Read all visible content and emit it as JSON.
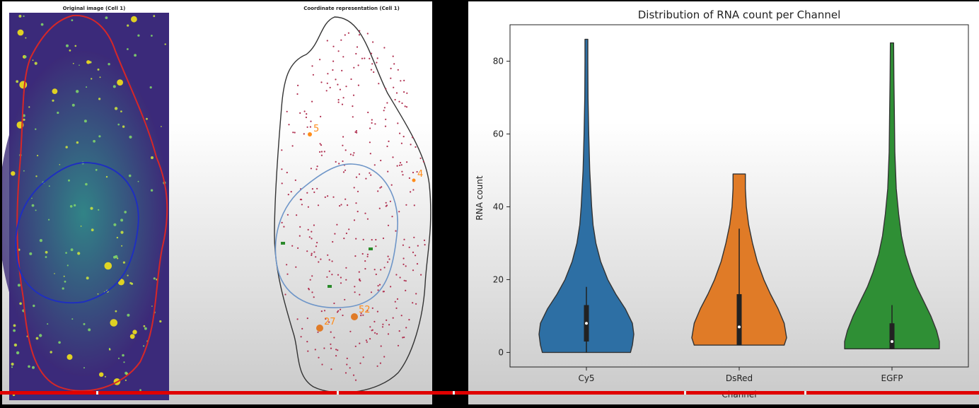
{
  "left": {
    "title_original": "Original image (Cell 1)",
    "title_coord": "Coordinate representation (Cell 1)",
    "cluster_labels": [
      "5",
      "4",
      "27",
      "52"
    ],
    "colors": {
      "cell_outline": "#d62728",
      "nucleus_outline": "#1f2fbf",
      "rna_spot": "#b03050",
      "cluster": "#ff8c1a",
      "coord_nucleus": "#6f96c8"
    }
  },
  "chart_data": {
    "type": "violin",
    "title": "Distribution of RNA count per Channel",
    "xlabel": "Channel",
    "ylabel": "RNA count",
    "categories": [
      "Cy5",
      "DsRed",
      "EGFP"
    ],
    "ylim": [
      -4,
      90
    ],
    "yticks": [
      0,
      20,
      40,
      60,
      80
    ],
    "colors": [
      "#2d6fa4",
      "#e07b27",
      "#2f8f35"
    ],
    "series": [
      {
        "category": "Cy5",
        "min": 0,
        "max": 86,
        "q1": 3,
        "median": 8,
        "q3": 13,
        "whisker_low": 0,
        "whisker_high": 18,
        "profile": [
          [
            0,
            0.93
          ],
          [
            2,
            0.97
          ],
          [
            5,
            1.0
          ],
          [
            8,
            0.97
          ],
          [
            12,
            0.82
          ],
          [
            16,
            0.62
          ],
          [
            20,
            0.45
          ],
          [
            25,
            0.3
          ],
          [
            30,
            0.2
          ],
          [
            35,
            0.14
          ],
          [
            40,
            0.11
          ],
          [
            50,
            0.07
          ],
          [
            60,
            0.05
          ],
          [
            70,
            0.035
          ],
          [
            80,
            0.03
          ],
          [
            86,
            0.03
          ]
        ]
      },
      {
        "category": "DsRed",
        "min": 2,
        "max": 49,
        "q1": 2,
        "median": 7,
        "q3": 16,
        "whisker_low": 2,
        "whisker_high": 34,
        "profile": [
          [
            2,
            0.95
          ],
          [
            4,
            1.0
          ],
          [
            8,
            0.95
          ],
          [
            12,
            0.82
          ],
          [
            16,
            0.66
          ],
          [
            20,
            0.52
          ],
          [
            25,
            0.38
          ],
          [
            30,
            0.28
          ],
          [
            35,
            0.2
          ],
          [
            40,
            0.15
          ],
          [
            45,
            0.13
          ],
          [
            49,
            0.13
          ]
        ]
      },
      {
        "category": "EGFP",
        "min": 1,
        "max": 85,
        "q1": 1,
        "median": 3,
        "q3": 8,
        "whisker_low": 1,
        "whisker_high": 13,
        "profile": [
          [
            1,
            1.0
          ],
          [
            3,
            1.0
          ],
          [
            6,
            0.94
          ],
          [
            10,
            0.82
          ],
          [
            14,
            0.67
          ],
          [
            18,
            0.52
          ],
          [
            22,
            0.4
          ],
          [
            27,
            0.28
          ],
          [
            32,
            0.2
          ],
          [
            38,
            0.14
          ],
          [
            45,
            0.09
          ],
          [
            55,
            0.06
          ],
          [
            65,
            0.05
          ],
          [
            75,
            0.04
          ],
          [
            85,
            0.035
          ]
        ]
      }
    ]
  }
}
